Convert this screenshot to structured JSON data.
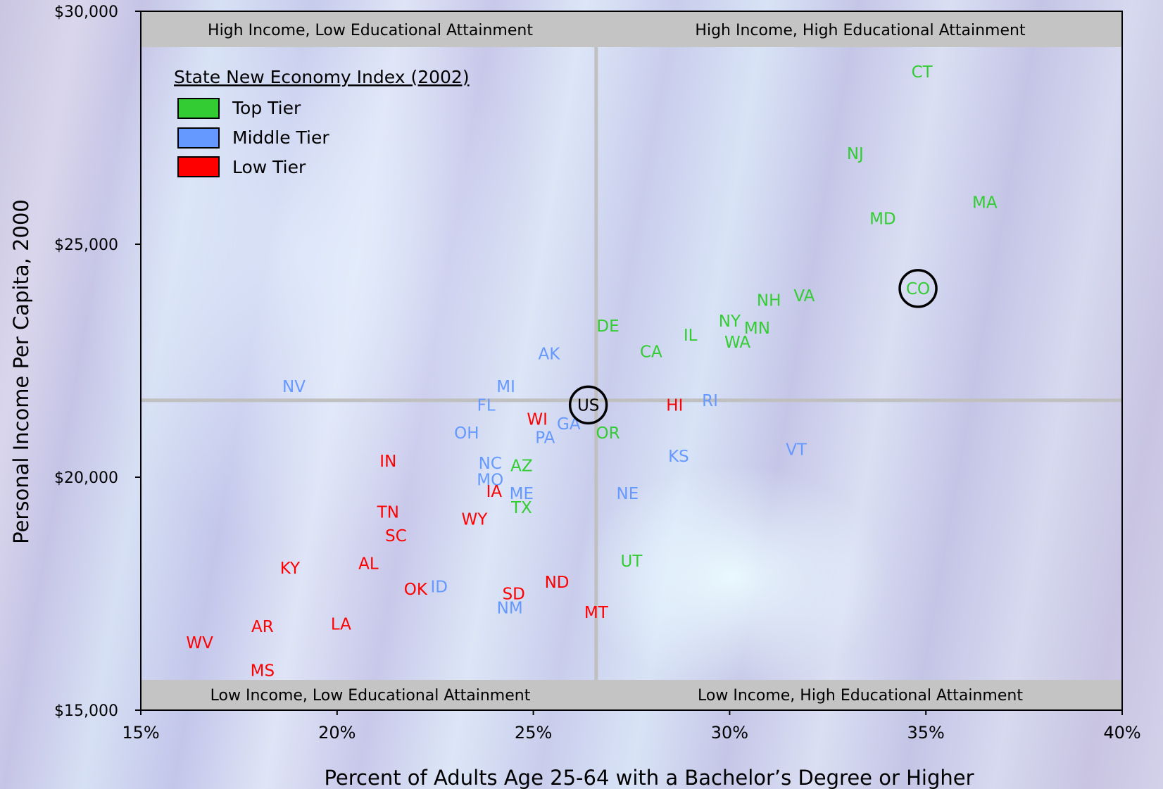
{
  "chart_data": {
    "type": "scatter",
    "xlabel": "Percent of Adults Age 25-64 with a Bachelor’s Degree or Higher",
    "ylabel": "Personal Income Per Capita, 2000",
    "xlim": [
      15,
      40
    ],
    "ylim": [
      15000,
      30000
    ],
    "x_ticks": [
      {
        "value": 15,
        "label": "15%"
      },
      {
        "value": 20,
        "label": "20%"
      },
      {
        "value": 25,
        "label": "25%"
      },
      {
        "value": 30,
        "label": "30%"
      },
      {
        "value": 35,
        "label": "35%"
      },
      {
        "value": 40,
        "label": "40%"
      }
    ],
    "y_ticks": [
      {
        "value": 15000,
        "label": "$15,000"
      },
      {
        "value": 20000,
        "label": "$20,000"
      },
      {
        "value": 25000,
        "label": "$25,000"
      },
      {
        "value": 30000,
        "label": "$30,000"
      }
    ],
    "grid": false,
    "reference_lines": {
      "x": 26.6,
      "y": 21650
    },
    "quadrant_labels": {
      "top_left": "High Income, Low Educational Attainment",
      "top_right": "High Income, High Educational Attainment",
      "bottom_left": "Low Income, Low Educational Attainment",
      "bottom_right": "Low Income, High Educational Attainment"
    },
    "legend": {
      "title": "State New Economy Index (2002)",
      "position": "top-left",
      "entries": [
        {
          "tier": "top",
          "label": "Top Tier",
          "color": "#33cc33"
        },
        {
          "tier": "middle",
          "label": "Middle Tier",
          "color": "#6699ff"
        },
        {
          "tier": "low",
          "label": "Low Tier",
          "color": "#ff0000"
        }
      ]
    },
    "tier_colors": {
      "top": "#33cc33",
      "middle": "#6699ff",
      "low": "#ff0000",
      "us": "#000000"
    },
    "highlighted": [
      "US",
      "CO"
    ],
    "points": [
      {
        "label": "CT",
        "x": 34.9,
        "y": 28700,
        "tier": "top"
      },
      {
        "label": "NJ",
        "x": 33.2,
        "y": 26950,
        "tier": "top"
      },
      {
        "label": "MA",
        "x": 36.5,
        "y": 25900,
        "tier": "top"
      },
      {
        "label": "MD",
        "x": 33.9,
        "y": 25550,
        "tier": "top"
      },
      {
        "label": "CO",
        "x": 34.8,
        "y": 24050,
        "tier": "top"
      },
      {
        "label": "NH",
        "x": 31.0,
        "y": 23800,
        "tier": "top"
      },
      {
        "label": "VA",
        "x": 31.9,
        "y": 23900,
        "tier": "top"
      },
      {
        "label": "NY",
        "x": 30.0,
        "y": 23350,
        "tier": "top"
      },
      {
        "label": "MN",
        "x": 30.7,
        "y": 23200,
        "tier": "top"
      },
      {
        "label": "WA",
        "x": 30.2,
        "y": 22900,
        "tier": "top"
      },
      {
        "label": "DE",
        "x": 26.9,
        "y": 23250,
        "tier": "top"
      },
      {
        "label": "IL",
        "x": 29.0,
        "y": 23050,
        "tier": "top"
      },
      {
        "label": "CA",
        "x": 28.0,
        "y": 22700,
        "tier": "top"
      },
      {
        "label": "OR",
        "x": 26.9,
        "y": 20950,
        "tier": "top"
      },
      {
        "label": "AZ",
        "x": 24.7,
        "y": 20250,
        "tier": "top"
      },
      {
        "label": "TX",
        "x": 24.7,
        "y": 19350,
        "tier": "top"
      },
      {
        "label": "UT",
        "x": 27.5,
        "y": 18200,
        "tier": "top"
      },
      {
        "label": "AK",
        "x": 25.4,
        "y": 22650,
        "tier": "middle"
      },
      {
        "label": "NV",
        "x": 18.9,
        "y": 21950,
        "tier": "middle"
      },
      {
        "label": "MI",
        "x": 24.3,
        "y": 21950,
        "tier": "middle"
      },
      {
        "label": "FL",
        "x": 23.8,
        "y": 21550,
        "tier": "middle"
      },
      {
        "label": "RI",
        "x": 29.5,
        "y": 21650,
        "tier": "middle"
      },
      {
        "label": "GA",
        "x": 25.9,
        "y": 21150,
        "tier": "middle"
      },
      {
        "label": "OH",
        "x": 23.3,
        "y": 20950,
        "tier": "middle"
      },
      {
        "label": "PA",
        "x": 25.3,
        "y": 20850,
        "tier": "middle"
      },
      {
        "label": "KS",
        "x": 28.7,
        "y": 20450,
        "tier": "middle"
      },
      {
        "label": "VT",
        "x": 31.7,
        "y": 20600,
        "tier": "middle"
      },
      {
        "label": "NC",
        "x": 23.9,
        "y": 20300,
        "tier": "middle"
      },
      {
        "label": "MO",
        "x": 23.9,
        "y": 19950,
        "tier": "middle"
      },
      {
        "label": "ME",
        "x": 24.7,
        "y": 19650,
        "tier": "middle"
      },
      {
        "label": "NE",
        "x": 27.4,
        "y": 19650,
        "tier": "middle"
      },
      {
        "label": "ID",
        "x": 22.6,
        "y": 17650,
        "tier": "middle"
      },
      {
        "label": "NM",
        "x": 24.4,
        "y": 17200,
        "tier": "middle"
      },
      {
        "label": "WI",
        "x": 25.1,
        "y": 21250,
        "tier": "low"
      },
      {
        "label": "HI",
        "x": 28.6,
        "y": 21550,
        "tier": "low"
      },
      {
        "label": "IN",
        "x": 21.3,
        "y": 20350,
        "tier": "low"
      },
      {
        "label": "IA",
        "x": 24.0,
        "y": 19700,
        "tier": "low"
      },
      {
        "label": "TN",
        "x": 21.3,
        "y": 19250,
        "tier": "low"
      },
      {
        "label": "WY",
        "x": 23.5,
        "y": 19100,
        "tier": "low"
      },
      {
        "label": "SC",
        "x": 21.5,
        "y": 18750,
        "tier": "low"
      },
      {
        "label": "KY",
        "x": 18.8,
        "y": 18050,
        "tier": "low"
      },
      {
        "label": "AL",
        "x": 20.8,
        "y": 18150,
        "tier": "low"
      },
      {
        "label": "ND",
        "x": 25.6,
        "y": 17750,
        "tier": "low"
      },
      {
        "label": "OK",
        "x": 22.0,
        "y": 17600,
        "tier": "low"
      },
      {
        "label": "SD",
        "x": 24.5,
        "y": 17500,
        "tier": "low"
      },
      {
        "label": "MT",
        "x": 26.6,
        "y": 17100,
        "tier": "low"
      },
      {
        "label": "AR",
        "x": 18.1,
        "y": 16800,
        "tier": "low"
      },
      {
        "label": "LA",
        "x": 20.1,
        "y": 16850,
        "tier": "low"
      },
      {
        "label": "WV",
        "x": 16.5,
        "y": 16450,
        "tier": "low"
      },
      {
        "label": "MS",
        "x": 18.1,
        "y": 15850,
        "tier": "low"
      },
      {
        "label": "US",
        "x": 26.4,
        "y": 21550,
        "tier": "us"
      }
    ]
  }
}
